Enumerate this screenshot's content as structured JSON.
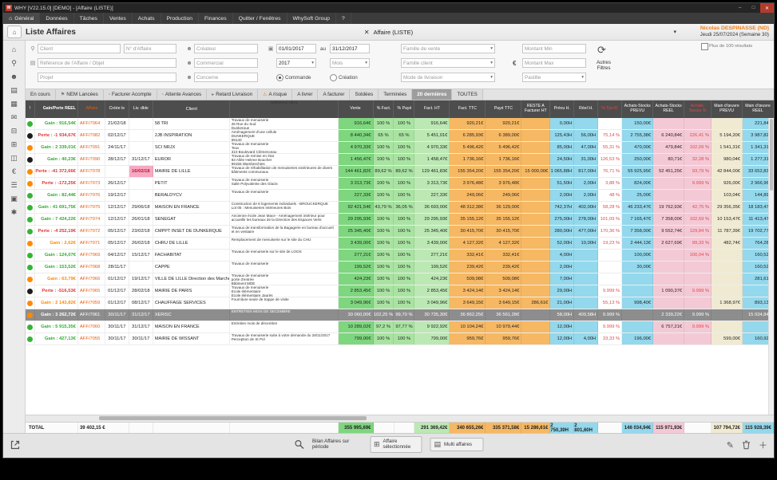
{
  "titlebar": {
    "title": "WHY [V22.15.0]  [DEMO] - [Affaire (LISTE)]"
  },
  "menu": {
    "items": [
      {
        "label": "Général",
        "icon": "home"
      },
      {
        "label": "Données"
      },
      {
        "label": "Tâches"
      },
      {
        "label": "Ventes"
      },
      {
        "label": "Achats"
      },
      {
        "label": "Production"
      },
      {
        "label": "Finances"
      },
      {
        "label": "Quitter / Fenêtres"
      },
      {
        "label": "WhySoft Group"
      },
      {
        "label": "?"
      }
    ]
  },
  "header": {
    "title": "Liste Affaires",
    "context": "Affaire (LISTE)",
    "user": "Nicolas DESPINASSE (ND)",
    "date": "Jeudi 25/07/2024 (Semaine 30)"
  },
  "filters": {
    "client": "Client",
    "num_affaire": "N° d'Affaire",
    "reference": "Référence de l'Affaire / Objet",
    "projet": "Projet",
    "createur": "Créateur",
    "commercial": "Commercial",
    "concerne": "Concerne",
    "date_from": "01/01/2017",
    "au_label": "au",
    "date_to": "31/12/2017",
    "year": "2017",
    "month": "Mois",
    "radio_commande": "Commande",
    "radio_creation": "Création",
    "famille_vente": "Famille de vente",
    "famille_client": "Famille client",
    "mode_livraison": "Mode de livraison",
    "montant_min": "Montant Min",
    "montant_max": "Montant Max",
    "pastille": "Pastille",
    "autres_filtres": "Autres Filtres",
    "plus_100": "Plus de 100 résultats"
  },
  "tabs": {
    "selected_index": 10,
    "items": [
      {
        "label": "En cours"
      },
      {
        "label": "NEM Lancées",
        "icon": "flag"
      },
      {
        "label": "Facturer Acompte",
        "icon": "doc"
      },
      {
        "label": "Attente Avances",
        "icon": "doc"
      },
      {
        "label": "Retard Livraison",
        "icon": "truck"
      },
      {
        "label": "A risque",
        "icon": "warning"
      },
      {
        "label": "A livrer"
      },
      {
        "label": "A facturer"
      },
      {
        "label": "Soldées"
      },
      {
        "label": "Terminées"
      },
      {
        "label": "20 dernières"
      },
      {
        "label": "TOUTES"
      }
    ]
  },
  "sidebar": {
    "icons": [
      {
        "name": "home"
      },
      {
        "name": "search"
      },
      {
        "name": "user"
      },
      {
        "name": "clipboard"
      },
      {
        "name": "box"
      },
      {
        "name": "mail"
      },
      {
        "name": "folder"
      },
      {
        "name": "grid"
      },
      {
        "name": "chart"
      },
      {
        "name": "euro"
      },
      {
        "name": "list"
      },
      {
        "name": "print"
      },
      {
        "name": "settings"
      }
    ]
  },
  "table": {
    "columns": [
      "!",
      "Gain/Perte REEL",
      "Affaire",
      "Créée le",
      "Liv. dble",
      "Client",
      "Référence client",
      "Vente",
      "% Fact.",
      "% Payé",
      "Fact. HT",
      "Fact. TTC",
      "Payé TTC",
      "RESTE A Facturer HT",
      "Prévu H.",
      "Réel H.",
      "% Tps R.",
      "Achats-Stocks PREVU",
      "Achats-Stocks REEL",
      "Achats-Stocks %",
      "Main d'œuvre PREVU",
      "Main d'œuvre REEL"
    ],
    "rows": [
      {
        "dot": "green",
        "gain": "Gain : 916,54€",
        "gc": "green",
        "aff": "AFF/7064",
        "created": "21/02/18",
        "due": "",
        "late": false,
        "client": "58 TRI",
        "ref": "Travaux de menuiserie\n26 Rue du Sud\nDunkerque",
        "vente": "916,64€",
        "pfact": "100 %",
        "ppaye": "100 %",
        "factht": "916,64€",
        "factttc": "920,21€",
        "payettc": "920,21€",
        "reste": "",
        "prevuh": "0,00H",
        "reelh": "",
        "tps": "",
        "asprevu": "150,00€",
        "asreel": "",
        "aspct": "",
        "moprevu": "",
        "moreel": "221,84€",
        "selected": false
      },
      {
        "dot": "black",
        "gain": "Perte : -1 934,67€",
        "gc": "red",
        "aff": "AFF/7082",
        "created": "02/12/17",
        "due": "",
        "late": false,
        "client": "2JB INSPIRATION",
        "ref": "Aménagement d'une cellule\nDUNKERQUE\n59140",
        "vente": "8 440,34€",
        "pfact": "65 %",
        "ppaye": "65 %",
        "factht": "5 451,01€",
        "factttc": "6 285,93€",
        "payettc": "6 389,00€",
        "reste": "",
        "prevuh": "125,43H",
        "reelh": "56,00H",
        "tps": "75,14 %",
        "asprevu": "2 755,38€",
        "asreel": "6 240,84€",
        "aspct": "226,41 %",
        "moprevu": "5 194,20€",
        "moreel": "3 987,82€",
        "selected": false
      },
      {
        "dot": "orange",
        "gain": "Gain : 2 339,01€",
        "gc": "green",
        "aff": "AFF/7091",
        "created": "24/11/17",
        "due": "",
        "late": false,
        "client": "SCI NRJX",
        "ref": "Travaux de menuiserie\nTeux\n310 Boulevard Clémenceau\nMarcq en Baroeul",
        "vente": "4 970,33€",
        "pfact": "100 %",
        "ppaye": "100 %",
        "factht": "4 970,33€",
        "factttc": "5 496,42€",
        "payettc": "5 496,42€",
        "reste": "",
        "prevuh": "85,00H",
        "reelh": "47,00H",
        "tps": "55,31 %",
        "asprevu": "470,00€",
        "asreel": "479,84€",
        "aspct": "102,09 %",
        "moprevu": "1 541,31€",
        "moreel": "1 341,31€",
        "selected": false
      },
      {
        "dot": "black",
        "gain": "Gain : 40,23€",
        "gc": "green",
        "aff": "AFF/7090",
        "created": "28/12/17",
        "due": "31/12/17",
        "late": false,
        "client": "EUROR",
        "ref": "Travaux de remise en état\n83 Allée Helene Boucher\n59155 Wambrechies",
        "vente": "1 456,47€",
        "pfact": "100 %",
        "ppaye": "100 %",
        "factht": "1 458,47€",
        "factttc": "1 736,16€",
        "payettc": "1 736,16€",
        "reste": "",
        "prevuh": "24,50H",
        "reelh": "31,00H",
        "tps": "126,53 %",
        "asprevu": "250,00€",
        "asreel": "80,71€",
        "aspct": "32,28 %",
        "moprevu": "980,04€",
        "moreel": "1 277,31€",
        "selected": false
      },
      {
        "dot": "orange",
        "gain": "Perte : -41 372,66€",
        "gc": "red",
        "aff": "AFF/7078",
        "created": "",
        "due": "16/02/18",
        "late": true,
        "client": "MAIRIE DE LILLE",
        "ref": "Travaux de réhabilitation de menuiseries extérieures de divers bâtiments communaux",
        "vente": "144 461,82€",
        "pfact": "89,62 %",
        "ppaye": "89,62 %",
        "factht": "129 461,83€",
        "factttc": "155 354,20€",
        "payettc": "155 354,20€",
        "reste": "15 000,00€",
        "prevuh": "1 065,88H",
        "reelh": "817,00H",
        "tps": "76,71 %",
        "asprevu": "55 925,95€",
        "asreel": "52 451,25€",
        "aspct": "93,79 %",
        "moprevu": "42 844,00€",
        "moreel": "33 652,83€",
        "selected": false
      },
      {
        "dot": "orange",
        "gain": "Perte : -172,25€",
        "gc": "red",
        "aff": "AFF/7073",
        "created": "26/12/17",
        "due": "",
        "late": false,
        "client": "PETIT",
        "ref": "Travaux de menuiserie\nSalle Polyvalente des Glacis",
        "vente": "3 313,73€",
        "pfact": "100 %",
        "ppaye": "100 %",
        "factht": "3 313,73€",
        "factttc": "3 976,48€",
        "payettc": "3 976,48€",
        "reste": "",
        "prevuh": "51,50H",
        "reelh": "2,00H",
        "tps": "3,88 %",
        "asprevu": "824,00€",
        "asreel": "",
        "aspct": "9.999 %",
        "moprevu": "926,00€",
        "moreel": "2 966,96€",
        "selected": false
      },
      {
        "dot": "green",
        "gain": "Gain : 82,44€",
        "gc": "green",
        "aff": "AFF/7076",
        "created": "19/12/17",
        "due": "",
        "late": false,
        "client": "BERALDYCV",
        "ref": "Travaux de menuiserie",
        "vente": "227,33€",
        "pfact": "100 %",
        "ppaye": "100 %",
        "factht": "227,33€",
        "factttc": "249,06€",
        "payettc": "249,06€",
        "reste": "",
        "prevuh": "2,00H",
        "reelh": "2,00H",
        "tps": "48 %",
        "asprevu": "25,00€",
        "asreel": "",
        "aspct": "",
        "moprevu": "103,04€",
        "moreel": "144,89€",
        "selected": false
      },
      {
        "dot": "green",
        "gain": "Gain : 41 691,75€",
        "gc": "green",
        "aff": "AFF/7075",
        "created": "12/12/17",
        "due": "29/06/18",
        "late": false,
        "client": "MAISON EN FRANCE",
        "ref": "Construction de 8 logements individuels - BROUCKERQUE\nLot 05 : Menuiseries Intérieures Bois",
        "vente": "92 421,54€",
        "pfact": "43,79 %",
        "ppaye": "36,05 %",
        "factht": "36 693,00€",
        "factttc": "48 312,38€",
        "payettc": "36 129,00€",
        "reste": "",
        "prevuh": "742,37H",
        "reelh": "402,00H",
        "tps": "58,28 %",
        "asprevu": "46 233,47€",
        "asreel": "19 762,93€",
        "aspct": "42,75 %",
        "moprevu": "29 356,35€",
        "moreel": "18 183,47€",
        "selected": false
      },
      {
        "dot": "green",
        "gain": "Gain : 7 424,22€",
        "gc": "green",
        "aff": "AFF/7074",
        "created": "12/12/17",
        "due": "26/01/18",
        "late": false,
        "client": "SENEGAT",
        "ref": "Ancienne école Jean Mace - Aménagement intérieur pour accueillir les bureaux de la Direction des Espaces Verts",
        "vente": "29 295,93€",
        "pfact": "100 %",
        "ppaye": "100 %",
        "factht": "29 295,93€",
        "factttc": "35 155,12€",
        "payettc": "35 155,12€",
        "reste": "",
        "prevuh": "275,00H",
        "reelh": "278,00H",
        "tps": "101,09 %",
        "asprevu": "7 165,47€",
        "asreel": "7 358,00€",
        "aspct": "102,69 %",
        "moprevu": "10 153,47€",
        "moreel": "11 413,47€",
        "selected": false
      },
      {
        "dot": "green",
        "gain": "Perte : -4 252,19€",
        "gc": "red",
        "aff": "AFF/7072",
        "created": "05/12/17",
        "due": "23/02/18",
        "late": false,
        "client": "CMPPT INSET DE DUNKERQUE",
        "ref": "Travaux de transformation de la Bagagerie en bureau d'accueil et en vestiaire",
        "vente": "25 345,40€",
        "pfact": "100 %",
        "ppaye": "100 %",
        "factht": "25 345,40€",
        "factttc": "30 415,70€",
        "payettc": "30 415,70€",
        "reste": "",
        "prevuh": "280,00H",
        "reelh": "477,00H",
        "tps": "170,36 %",
        "asprevu": "7 358,00€",
        "asreel": "9 552,74€",
        "aspct": "129,84 %",
        "moprevu": "11 787,39€",
        "moreel": "19 702,77€",
        "selected": false
      },
      {
        "dot": "orange",
        "gain": "Gain : 2,62€",
        "gc": "orange",
        "aff": "AFF/7071",
        "created": "05/12/17",
        "due": "26/02/18",
        "late": false,
        "client": "CHRU DE LILLE",
        "ref": "Remplacement de menuiserie sur le site du CHU",
        "vente": "3 439,00€",
        "pfact": "100 %",
        "ppaye": "100 %",
        "factht": "3 439,00€",
        "factttc": "4 127,32€",
        "payettc": "4 127,32€",
        "reste": "",
        "prevuh": "52,00H",
        "reelh": "10,00H",
        "tps": "19,23 %",
        "asprevu": "2 444,13€",
        "asreel": "2 627,69€",
        "aspct": "99,33 %",
        "moprevu": "482,74€",
        "moreel": "764,28€",
        "selected": false
      },
      {
        "dot": "green",
        "gain": "Gain : 124,07€",
        "gc": "green",
        "aff": "AFF/7069",
        "created": "04/12/17",
        "due": "15/12/17",
        "late": false,
        "client": "FACHABITAT",
        "ref": "Travaux de menuiserie sur le site de LOOS",
        "vente": "277,21€",
        "pfact": "100 %",
        "ppaye": "100 %",
        "factht": "277,21€",
        "factttc": "332,41€",
        "payettc": "332,41€",
        "reste": "",
        "prevuh": "4,00H",
        "reelh": "",
        "tps": "",
        "asprevu": "100,00€",
        "asreel": "",
        "aspct": "100,04 %",
        "moprevu": "",
        "moreel": "160,52€",
        "selected": false
      },
      {
        "dot": "green",
        "gain": "Gain : 153,52€",
        "gc": "green",
        "aff": "AFF/7068",
        "created": "28/11/17",
        "due": "",
        "late": false,
        "client": "CAPPE",
        "ref": "Travaux de menuiserie",
        "vente": "199,52€",
        "pfact": "100 %",
        "ppaye": "100 %",
        "factht": "199,52€",
        "factttc": "239,42€",
        "payettc": "239,42€",
        "reste": "",
        "prevuh": "2,00H",
        "reelh": "",
        "tps": "",
        "asprevu": "30,00€",
        "asreel": "",
        "aspct": "",
        "moprevu": "",
        "moreel": "160,52€",
        "selected": false
      },
      {
        "dot": "orange",
        "gain": "Gain : 63,79€",
        "gc": "orange",
        "aff": "AFF/7066",
        "created": "01/12/17",
        "due": "19/12/17",
        "late": false,
        "client": "VILLE DE LILLE Direction des Marchés publics",
        "ref": "Travaux de menuiserie\nporte d'entrée\nBâtiment MDE\nDunkerque",
        "vente": "424,23€",
        "pfact": "100 %",
        "ppaye": "100 %",
        "factht": "424,23€",
        "factttc": "509,08€",
        "payettc": "509,08€",
        "reste": "",
        "prevuh": "7,00H",
        "reelh": "",
        "tps": "",
        "asprevu": "",
        "asreel": "",
        "aspct": "",
        "moprevu": "",
        "moreel": "281,61€",
        "selected": false
      },
      {
        "dot": "black",
        "gain": "Perte : -516,53€",
        "gc": "red",
        "aff": "AFF/7065",
        "created": "01/12/17",
        "due": "28/02/18",
        "late": false,
        "client": "MAIRIE DE PARIS",
        "ref": "Travaux de menuiserie\nEcole élémentaire\nEcole élémentaire Jaurès",
        "vente": "2 853,45€",
        "pfact": "100 %",
        "ppaye": "100 %",
        "factht": "2 853,45€",
        "factttc": "3 424,14€",
        "payettc": "3 424,14€",
        "reste": "",
        "prevuh": "29,00H",
        "reelh": "",
        "tps": "9.999 %",
        "asprevu": "",
        "asreel": "1 090,37€",
        "aspct": "9.999 %",
        "moprevu": "",
        "moreel": "",
        "selected": false
      },
      {
        "dot": "orange",
        "gain": "Gain : 2 143,82€",
        "gc": "orange",
        "aff": "AFF/7059",
        "created": "01/12/17",
        "due": "08/12/17",
        "late": false,
        "client": "CHAUFFAGE SERVICES",
        "ref": "Fourniture seule de trappe de visite",
        "vente": "3 049,96€",
        "pfact": "100 %",
        "ppaye": "100 %",
        "factht": "3 049,96€",
        "factttc": "3 649,15€",
        "payettc": "3 649,15€",
        "reste": "286,61€",
        "prevuh": "21,00H",
        "reelh": "",
        "tps": "55,13 %",
        "asprevu": "998,40€",
        "asreel": "",
        "aspct": "",
        "moprevu": "1 368,97€",
        "moreel": "893,13€",
        "selected": false
      },
      {
        "dot": "orange",
        "gain": "Gain : 3 262,72€",
        "gc": "orange",
        "aff": "AFF/7061",
        "created": "30/11/17",
        "due": "31/12/17",
        "late": false,
        "client": "XERISC",
        "ref": "ENTRETIEN MOIS DE DECEMBRE",
        "vente": "30 060,00€",
        "pfact": "102,25 %",
        "ppaye": "99,70 %",
        "factht": "30 735,30€",
        "factttc": "36 862,25€",
        "payettc": "36 561,28€",
        "reste": "",
        "prevuh": "58,00H",
        "reelh": "400,58H",
        "tps": "9.999 %",
        "asprevu": "",
        "asreel": "2 339,22€",
        "aspct": "9.999 %",
        "moprevu": "",
        "moreel": "15 034,84€",
        "selected": true
      },
      {
        "dot": "green",
        "gain": "Gain : 5 915,35€",
        "gc": "green",
        "aff": "AFF/7060",
        "created": "30/11/17",
        "due": "31/12/17",
        "late": false,
        "client": "MAISON EN FRANCE",
        "ref": "Entretien mois de décembre",
        "vente": "10 289,02€",
        "pfact": "97,2 %",
        "ppaye": "97,77 %",
        "factht": "9 922,92€",
        "factttc": "10 104,24€",
        "payettc": "10 979,44€",
        "reste": "",
        "prevuh": "12,00H",
        "reelh": "",
        "tps": "9.999 %",
        "asprevu": "",
        "asreel": "6 757,21€",
        "aspct": "9.999 %",
        "moprevu": "",
        "moreel": "",
        "selected": false
      },
      {
        "dot": "green",
        "gain": "Gain : 427,13€",
        "gc": "green",
        "aff": "AFF/7055",
        "created": "30/11/17",
        "due": "30/11/17",
        "late": false,
        "client": "MAIRIE DE WISSANT",
        "ref": "Travaux de menuiserie suite à votre demande du 28/11/2017\nPerception de St Pol",
        "vente": "799,00€",
        "pfact": "100 %",
        "ppaye": "100 %",
        "factht": "799,00€",
        "factttc": "959,76€",
        "payettc": "959,76€",
        "reste": "",
        "prevuh": "12,00H",
        "reelh": "4,00H",
        "tps": "33,33 %",
        "asprevu": "196,00€",
        "asreel": "",
        "aspct": "",
        "moprevu": "599,00€",
        "moreel": "160,92€",
        "selected": false
      }
    ],
    "total": {
      "label": "TOTAL",
      "gain": "39 402,15 €",
      "vente": "355 995,69€",
      "factht": "291 369,42€",
      "factttc": "340 655,26€",
      "payettc": "335 371,58€",
      "reste": "15 286,61€",
      "prevuh": "2 750,39H",
      "reelh": "2 801,60H",
      "asprevu": "146 034,94€",
      "asreel": "115 971,93€",
      "moprevu": "107 794,72€",
      "moreel": "115 928,39€"
    }
  },
  "footer": {
    "bilan": "Bilan Affaires sur période",
    "affaire_sel": "Affaire sélectionnée",
    "multi": "Multi affaires"
  }
}
